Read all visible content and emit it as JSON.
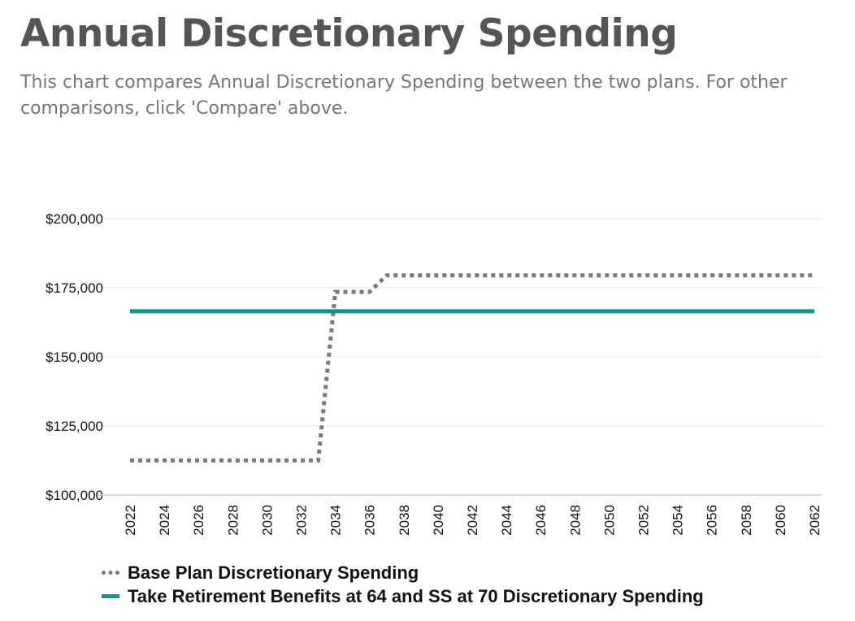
{
  "header": {
    "title": "Annual Discretionary Spending",
    "subtitle": "This chart compares Annual Discretionary Spending between the two plans. For other comparisons, click 'Compare' above."
  },
  "colors": {
    "base": "#7b7b7b",
    "alt": "#0f9488",
    "grid": "#e6e6e6",
    "axis": "#c9c9e4"
  },
  "chart_data": {
    "type": "line",
    "ylim": [
      100000,
      200000
    ],
    "yticks": [
      100000,
      125000,
      150000,
      175000,
      200000
    ],
    "ytick_labels": [
      "$100,000",
      "$125,000",
      "$150,000",
      "$175,000",
      "$200,000"
    ],
    "xlim": [
      2022,
      2062
    ],
    "xticks": [
      "2022",
      "2024",
      "2026",
      "2028",
      "2030",
      "2032",
      "2034",
      "2036",
      "2038",
      "2040",
      "2042",
      "2044",
      "2046",
      "2048",
      "2050",
      "2052",
      "2054",
      "2056",
      "2058",
      "2060",
      "2062"
    ],
    "grid": true,
    "legend_position": "bottom",
    "series": [
      {
        "name": "Base Plan Discretionary Spending",
        "style": "dotted",
        "x": [
          2022,
          2033,
          2034,
          2036,
          2037,
          2062
        ],
        "y": [
          112500,
          112500,
          173500,
          173500,
          179500,
          179500
        ]
      },
      {
        "name": "Take Retirement Benefits at 64 and SS at 70 Discretionary Spending",
        "style": "solid",
        "x": [
          2022,
          2062
        ],
        "y": [
          166500,
          166500
        ]
      }
    ]
  }
}
